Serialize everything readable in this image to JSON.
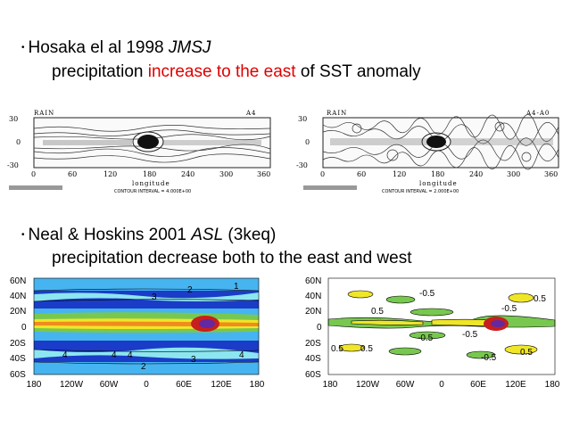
{
  "section1": {
    "bullet": "•",
    "authors": "Hosaka el al 1998 ",
    "journal": "JMSJ",
    "line2_before": "precipitation ",
    "line2_highlight": "increase to the east",
    "line2_after": " of  SST anomaly",
    "highlight_color": "#e00000",
    "left_panel": {
      "title": "RAIN",
      "tag": "A4",
      "y_ticks": [
        "30",
        "0",
        "-30"
      ],
      "x_ticks": [
        "0",
        "60",
        "120",
        "180",
        "240",
        "300",
        "360"
      ],
      "xlabel": "longitude",
      "contour_note": "CONTOUR INTERVAL = 4.000E+00"
    },
    "right_panel": {
      "title": "RAIN",
      "tag": "A4-A0",
      "y_ticks": [
        "30",
        "0",
        "-30"
      ],
      "x_ticks": [
        "0",
        "60",
        "120",
        "180",
        "240",
        "300",
        "360"
      ],
      "xlabel": "longitude",
      "contour_note": "CONTOUR INTERVAL = 2.000E+00"
    }
  },
  "section2": {
    "bullet": "•",
    "authors": "Neal & Hoskins 2001 ",
    "journal": "ASL",
    "tag": "  (3keq)",
    "line2": "precipitation decrease both to the east and west",
    "left_panel": {
      "y_ticks": [
        "60N",
        "40N",
        "20N",
        "0",
        "20S",
        "40S",
        "60S"
      ],
      "x_ticks": [
        "180",
        "120W",
        "60W",
        "0",
        "60E",
        "120E",
        "180"
      ],
      "contour_labels": [
        "1",
        "2",
        "3",
        "4",
        "4",
        "4",
        "3",
        "2",
        "4"
      ]
    },
    "right_panel": {
      "y_ticks": [
        "60N",
        "40N",
        "20N",
        "0",
        "20S",
        "40S",
        "60S"
      ],
      "x_ticks": [
        "180",
        "120W",
        "60W",
        "0",
        "60E",
        "120E",
        "180"
      ],
      "contour_labels": [
        "-0.5",
        "0.5",
        "-0.5",
        "0.5",
        "-0.5",
        "0.5",
        "0.5",
        "-0.5",
        "0.5",
        "-0.5"
      ]
    }
  },
  "colors": {
    "deep_blue": "#1a3cc8",
    "light_blue": "#46b4f0",
    "cyan": "#8ce6f0",
    "green": "#78c850",
    "yellow": "#f0e628",
    "orange": "#f08c1e",
    "red": "#c81e1e",
    "purple": "#6428a0"
  }
}
